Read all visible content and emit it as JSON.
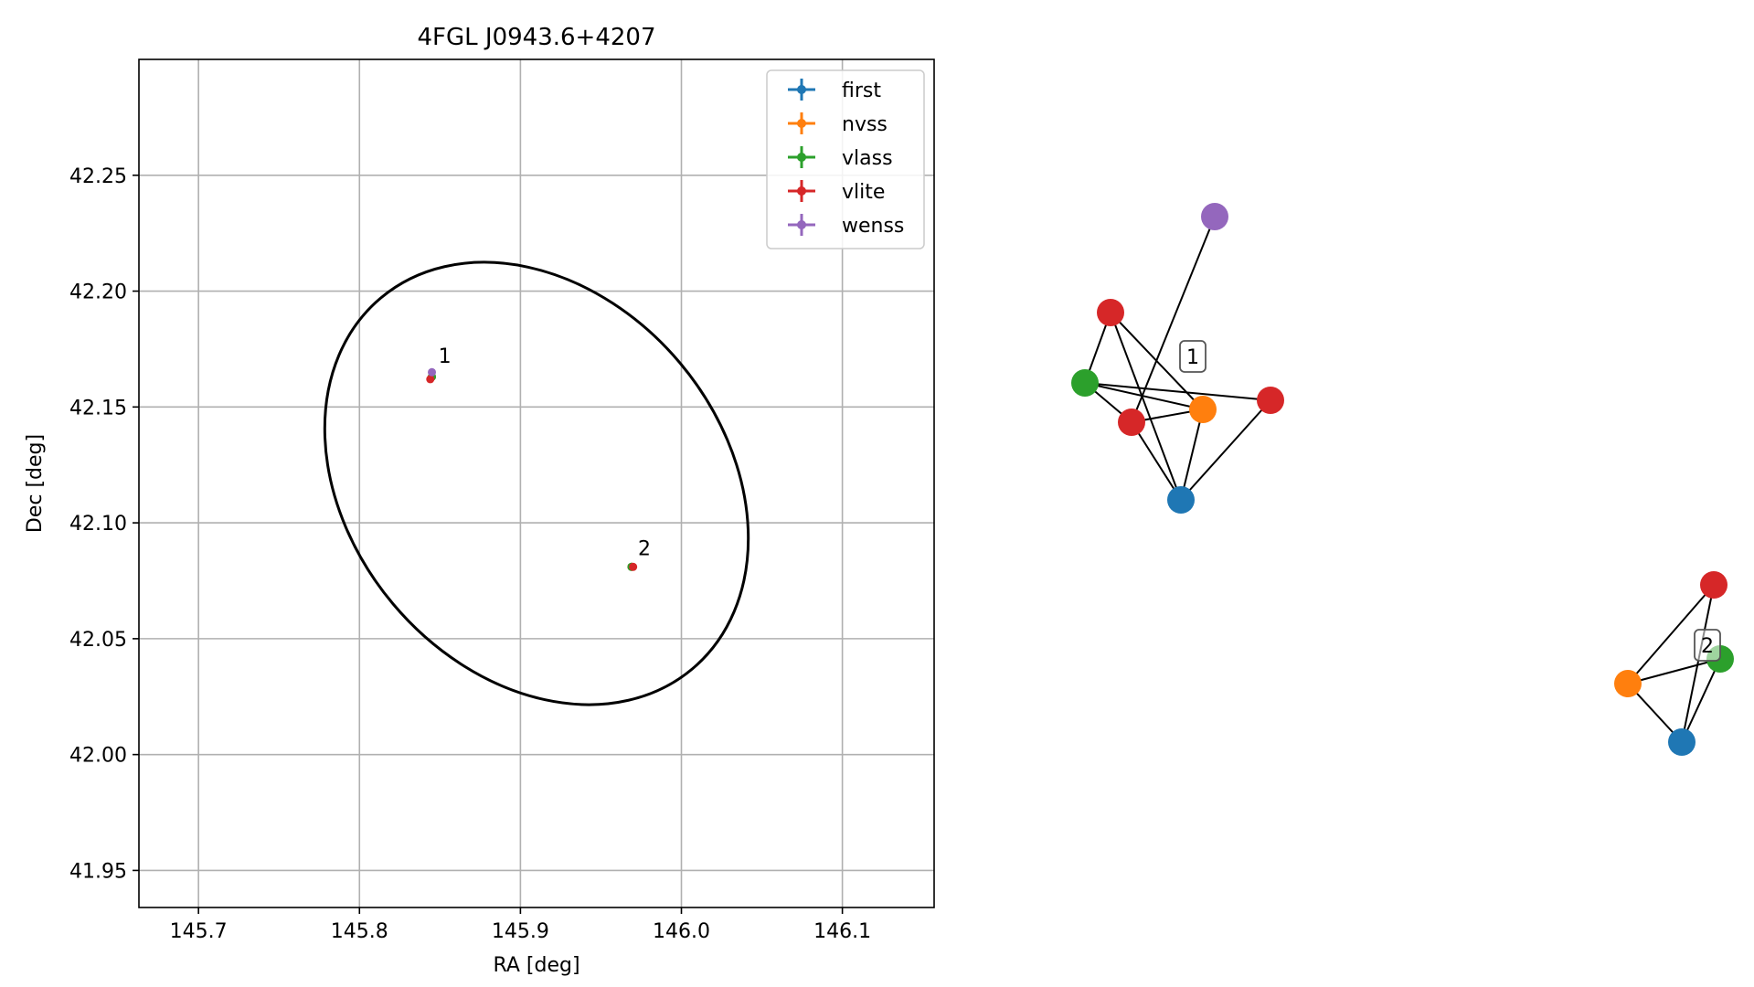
{
  "chart_data": [
    {
      "type": "scatter",
      "title": "4FGL J0943.6+4207",
      "xlabel": "RA [deg]",
      "ylabel": "Dec [deg]",
      "xlim": [
        145.663,
        146.157
      ],
      "ylim": [
        41.934,
        42.3
      ],
      "grid": true,
      "legend_position": "top-right",
      "xticks": [
        "145.7",
        "145.8",
        "145.9",
        "146.0",
        "146.1"
      ],
      "yticks": [
        "41.95",
        "42.00",
        "42.05",
        "42.10",
        "42.15",
        "42.20",
        "42.25"
      ],
      "series": [
        {
          "name": "first",
          "color": "#1f77b4",
          "points": [
            [
              145.845,
              42.163
            ],
            [
              145.969,
              42.081
            ]
          ]
        },
        {
          "name": "nvss",
          "color": "#ff7f0e",
          "points": [
            [
              145.845,
              42.163
            ],
            [
              145.969,
              42.081
            ]
          ]
        },
        {
          "name": "vlass",
          "color": "#2ca02c",
          "points": [
            [
              145.845,
              42.163
            ],
            [
              145.969,
              42.081
            ]
          ]
        },
        {
          "name": "vlite",
          "color": "#d62728",
          "points": [
            [
              145.844,
              42.162
            ],
            [
              145.97,
              42.081
            ]
          ]
        },
        {
          "name": "wenss",
          "color": "#9467bd",
          "points": [
            [
              145.845,
              42.165
            ]
          ]
        }
      ],
      "annotations": [
        {
          "text": "1",
          "x": 145.849,
          "y": 42.169
        },
        {
          "text": "2",
          "x": 145.973,
          "y": 42.086
        }
      ],
      "ellipse": {
        "center": [
          145.91,
          42.117
        ],
        "color": "#000000"
      }
    },
    {
      "type": "network",
      "clusters": [
        {
          "label": "1",
          "nodes": [
            {
              "id": "a",
              "color": "#9467bd"
            },
            {
              "id": "b",
              "color": "#d62728"
            },
            {
              "id": "c",
              "color": "#2ca02c"
            },
            {
              "id": "d",
              "color": "#d62728"
            },
            {
              "id": "e",
              "color": "#ff7f0e"
            },
            {
              "id": "f",
              "color": "#d62728"
            },
            {
              "id": "g",
              "color": "#1f77b4"
            }
          ],
          "edges": [
            [
              "a",
              "d"
            ],
            [
              "b",
              "c"
            ],
            [
              "b",
              "e"
            ],
            [
              "b",
              "g"
            ],
            [
              "c",
              "d"
            ],
            [
              "c",
              "e"
            ],
            [
              "c",
              "f"
            ],
            [
              "d",
              "e"
            ],
            [
              "d",
              "g"
            ],
            [
              "e",
              "g"
            ],
            [
              "f",
              "g"
            ]
          ]
        },
        {
          "label": "2",
          "nodes": [
            {
              "id": "h",
              "color": "#d62728"
            },
            {
              "id": "i",
              "color": "#2ca02c"
            },
            {
              "id": "j",
              "color": "#ff7f0e"
            },
            {
              "id": "k",
              "color": "#1f77b4"
            }
          ],
          "edges": [
            [
              "h",
              "j"
            ],
            [
              "h",
              "k"
            ],
            [
              "i",
              "j"
            ],
            [
              "i",
              "k"
            ],
            [
              "j",
              "k"
            ]
          ]
        }
      ]
    }
  ]
}
